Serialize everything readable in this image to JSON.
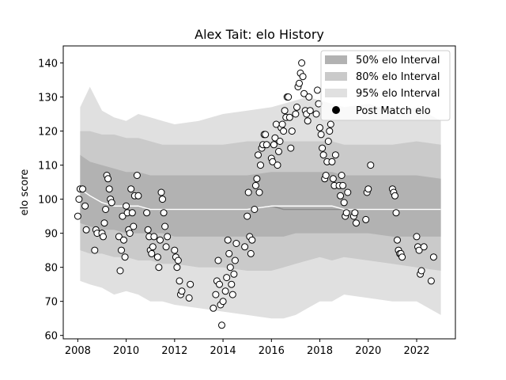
{
  "chart_data": {
    "type": "scatter",
    "title": "Alex Tait: elo History",
    "xlabel": "",
    "ylabel": "elo score",
    "xlim": [
      2007.4,
      2023.6
    ],
    "ylim": [
      59,
      145
    ],
    "x_ticks": [
      2008,
      2010,
      2012,
      2014,
      2016,
      2018,
      2020,
      2022
    ],
    "y_ticks": [
      60,
      70,
      80,
      90,
      100,
      110,
      120,
      130,
      140
    ],
    "grid": false,
    "legend_position": "top-right",
    "colors": {
      "band95": "#e0e0e0",
      "band80": "#cacaca",
      "band50": "#b2b2b2",
      "median": "#8c8c8c",
      "mean": "#ffffff",
      "points_fill": "#ffffff",
      "points_edge": "#000000"
    },
    "legend": [
      {
        "label": "50% elo Interval",
        "kind": "band50"
      },
      {
        "label": "80% elo Interval",
        "kind": "band80"
      },
      {
        "label": "95% elo Interval",
        "kind": "band95"
      },
      {
        "label": "Post Match elo",
        "kind": "point"
      }
    ],
    "intervals": {
      "x": [
        2008.1,
        2008.5,
        2009.0,
        2009.5,
        2010.0,
        2010.5,
        2011.0,
        2011.5,
        2012.0,
        2013.0,
        2014.0,
        2015.0,
        2016.0,
        2016.5,
        2017.0,
        2017.5,
        2018.0,
        2018.5,
        2019.0,
        2020.0,
        2021.0,
        2022.0,
        2023.0
      ],
      "lo95": [
        76,
        75,
        74,
        72,
        73,
        72,
        70,
        70,
        69,
        68,
        67,
        66,
        65,
        65,
        66,
        68,
        70,
        70,
        72,
        71,
        70,
        70,
        66
      ],
      "lo80": [
        85,
        84,
        84,
        83,
        83,
        82,
        82,
        81,
        81,
        80,
        80,
        79,
        79,
        80,
        81,
        82,
        83,
        82,
        83,
        82,
        81,
        80,
        79
      ],
      "lo50": [
        93,
        92,
        91,
        91,
        90,
        90,
        90,
        90,
        89,
        89,
        89,
        89,
        89,
        89,
        90,
        90,
        90,
        90,
        90,
        90,
        89,
        89,
        89
      ],
      "med": [
        103,
        101,
        99,
        98,
        98,
        98,
        97,
        97,
        97,
        97,
        97,
        97,
        98,
        97,
        97,
        97,
        97,
        97,
        97,
        97,
        97,
        97,
        97
      ],
      "mean": [
        103,
        101,
        99,
        98,
        98,
        98,
        97,
        97,
        97,
        97,
        97,
        97,
        98,
        98,
        98,
        98,
        98,
        98,
        97,
        97,
        97,
        97,
        97
      ],
      "hi50": [
        113,
        111,
        110,
        109,
        108,
        108,
        107,
        107,
        107,
        107,
        107,
        107,
        108,
        108,
        108,
        108,
        108,
        108,
        107,
        107,
        107,
        107,
        106
      ],
      "hi80": [
        120,
        120,
        119,
        119,
        118,
        118,
        117,
        116,
        116,
        116,
        116,
        117,
        117,
        117,
        117,
        117,
        117,
        117,
        116,
        116,
        116,
        117,
        116
      ],
      "hi95": [
        127,
        133,
        126,
        124,
        123,
        125,
        124,
        123,
        122,
        123,
        125,
        126,
        127,
        128,
        129,
        130,
        129,
        128,
        127,
        128,
        126,
        127,
        123
      ]
    },
    "points": [
      [
        2008.0,
        95
      ],
      [
        2008.05,
        100
      ],
      [
        2008.1,
        103
      ],
      [
        2008.2,
        103
      ],
      [
        2008.3,
        98
      ],
      [
        2008.35,
        91
      ],
      [
        2008.7,
        85
      ],
      [
        2008.75,
        91
      ],
      [
        2008.8,
        90
      ],
      [
        2009.0,
        90
      ],
      [
        2009.05,
        89
      ],
      [
        2009.1,
        93
      ],
      [
        2009.15,
        97
      ],
      [
        2009.2,
        107
      ],
      [
        2009.25,
        106
      ],
      [
        2009.3,
        103
      ],
      [
        2009.35,
        100
      ],
      [
        2009.4,
        99
      ],
      [
        2009.7,
        89
      ],
      [
        2009.75,
        79
      ],
      [
        2009.8,
        85
      ],
      [
        2009.85,
        95
      ],
      [
        2009.9,
        88
      ],
      [
        2009.95,
        83
      ],
      [
        2010.0,
        98
      ],
      [
        2010.05,
        96
      ],
      [
        2010.1,
        91
      ],
      [
        2010.15,
        90
      ],
      [
        2010.2,
        103
      ],
      [
        2010.25,
        96
      ],
      [
        2010.3,
        92
      ],
      [
        2010.35,
        101
      ],
      [
        2010.45,
        107
      ],
      [
        2010.5,
        101
      ],
      [
        2010.85,
        96
      ],
      [
        2010.9,
        91
      ],
      [
        2010.95,
        89
      ],
      [
        2011.0,
        85
      ],
      [
        2011.05,
        84
      ],
      [
        2011.1,
        86
      ],
      [
        2011.15,
        89
      ],
      [
        2011.3,
        83
      ],
      [
        2011.35,
        80
      ],
      [
        2011.4,
        88
      ],
      [
        2011.45,
        102
      ],
      [
        2011.5,
        100
      ],
      [
        2011.55,
        96
      ],
      [
        2011.6,
        92
      ],
      [
        2011.65,
        86
      ],
      [
        2011.7,
        89
      ],
      [
        2012.0,
        85
      ],
      [
        2012.05,
        83
      ],
      [
        2012.1,
        80
      ],
      [
        2012.15,
        82
      ],
      [
        2012.2,
        76
      ],
      [
        2012.25,
        72
      ],
      [
        2012.3,
        73
      ],
      [
        2012.6,
        71
      ],
      [
        2012.65,
        75
      ],
      [
        2013.6,
        68
      ],
      [
        2013.7,
        72
      ],
      [
        2013.75,
        76
      ],
      [
        2013.8,
        82
      ],
      [
        2013.85,
        75
      ],
      [
        2013.9,
        69
      ],
      [
        2013.95,
        63
      ],
      [
        2014.0,
        70
      ],
      [
        2014.1,
        73
      ],
      [
        2014.15,
        77
      ],
      [
        2014.2,
        88
      ],
      [
        2014.25,
        84
      ],
      [
        2014.3,
        80
      ],
      [
        2014.35,
        75
      ],
      [
        2014.4,
        72
      ],
      [
        2014.45,
        78
      ],
      [
        2014.5,
        82
      ],
      [
        2014.55,
        87
      ],
      [
        2014.9,
        86
      ],
      [
        2015.0,
        95
      ],
      [
        2015.05,
        102
      ],
      [
        2015.1,
        89
      ],
      [
        2015.15,
        84
      ],
      [
        2015.2,
        88
      ],
      [
        2015.3,
        97
      ],
      [
        2015.35,
        104
      ],
      [
        2015.4,
        106
      ],
      [
        2015.45,
        113
      ],
      [
        2015.5,
        102
      ],
      [
        2015.55,
        110
      ],
      [
        2015.6,
        115
      ],
      [
        2015.65,
        116
      ],
      [
        2015.7,
        119
      ],
      [
        2015.75,
        119
      ],
      [
        2015.8,
        116
      ],
      [
        2016.0,
        112
      ],
      [
        2016.05,
        111
      ],
      [
        2016.1,
        116
      ],
      [
        2016.15,
        118
      ],
      [
        2016.2,
        122
      ],
      [
        2016.25,
        110
      ],
      [
        2016.3,
        114
      ],
      [
        2016.35,
        117
      ],
      [
        2016.4,
        121
      ],
      [
        2016.45,
        122
      ],
      [
        2016.5,
        120
      ],
      [
        2016.55,
        126
      ],
      [
        2016.6,
        124
      ],
      [
        2016.65,
        130
      ],
      [
        2016.7,
        130
      ],
      [
        2016.75,
        124
      ],
      [
        2016.8,
        115
      ],
      [
        2016.85,
        120
      ],
      [
        2017.0,
        125
      ],
      [
        2017.05,
        127
      ],
      [
        2017.1,
        133
      ],
      [
        2017.15,
        134
      ],
      [
        2017.2,
        137
      ],
      [
        2017.25,
        140
      ],
      [
        2017.3,
        136
      ],
      [
        2017.35,
        131
      ],
      [
        2017.4,
        126
      ],
      [
        2017.45,
        125
      ],
      [
        2017.5,
        123
      ],
      [
        2017.55,
        130
      ],
      [
        2017.6,
        126
      ],
      [
        2017.85,
        125
      ],
      [
        2017.9,
        132
      ],
      [
        2017.95,
        128
      ],
      [
        2018.0,
        121
      ],
      [
        2018.05,
        119
      ],
      [
        2018.1,
        115
      ],
      [
        2018.15,
        113
      ],
      [
        2018.2,
        106
      ],
      [
        2018.25,
        107
      ],
      [
        2018.3,
        111
      ],
      [
        2018.35,
        117
      ],
      [
        2018.4,
        120
      ],
      [
        2018.45,
        122
      ],
      [
        2018.5,
        111
      ],
      [
        2018.55,
        106
      ],
      [
        2018.6,
        104
      ],
      [
        2018.65,
        113
      ],
      [
        2018.8,
        104
      ],
      [
        2018.85,
        101
      ],
      [
        2018.9,
        107
      ],
      [
        2018.95,
        104
      ],
      [
        2019.0,
        99
      ],
      [
        2019.05,
        95
      ],
      [
        2019.1,
        96
      ],
      [
        2019.15,
        102
      ],
      [
        2019.4,
        95
      ],
      [
        2019.45,
        96
      ],
      [
        2019.5,
        93
      ],
      [
        2019.9,
        94
      ],
      [
        2019.95,
        102
      ],
      [
        2020.0,
        103
      ],
      [
        2020.1,
        110
      ],
      [
        2021.0,
        103
      ],
      [
        2021.05,
        102
      ],
      [
        2021.1,
        101
      ],
      [
        2021.15,
        96
      ],
      [
        2021.2,
        88
      ],
      [
        2021.25,
        85
      ],
      [
        2021.3,
        84
      ],
      [
        2021.35,
        84
      ],
      [
        2021.4,
        83
      ],
      [
        2022.0,
        89
      ],
      [
        2022.05,
        86
      ],
      [
        2022.1,
        85
      ],
      [
        2022.15,
        78
      ],
      [
        2022.2,
        79
      ],
      [
        2022.3,
        86
      ],
      [
        2022.6,
        76
      ],
      [
        2022.7,
        83
      ]
    ]
  }
}
